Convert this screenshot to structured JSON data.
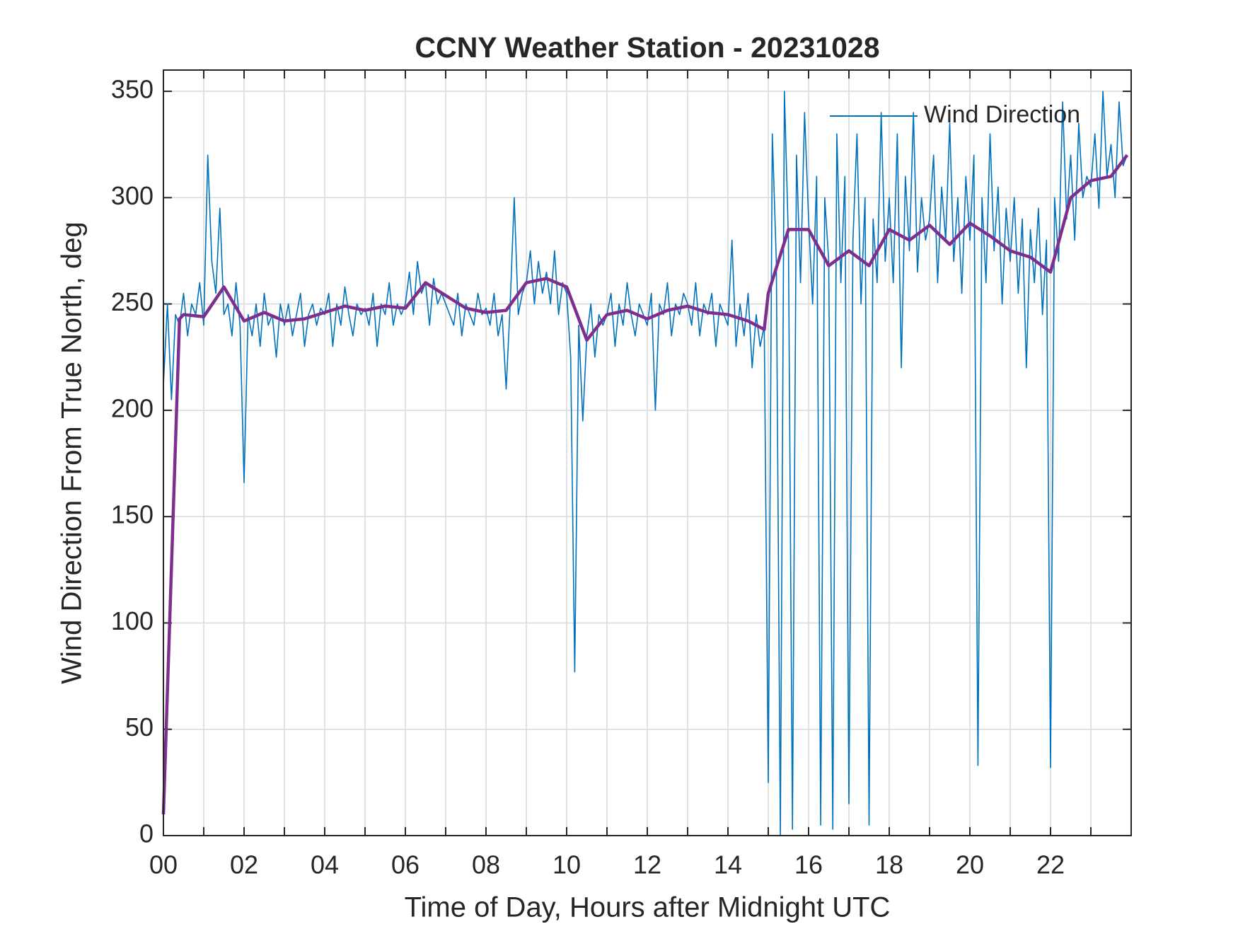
{
  "chart_data": {
    "type": "line",
    "title": "CCNY Weather Station - 20231028",
    "xlabel": "Time of Day, Hours after Midnight UTC",
    "ylabel": "Wind Direction From True North, deg",
    "xlim": [
      0,
      24
    ],
    "ylim": [
      0,
      360
    ],
    "xticks": [
      {
        "value": 0,
        "label": "00"
      },
      {
        "value": 2,
        "label": "02"
      },
      {
        "value": 4,
        "label": "04"
      },
      {
        "value": 6,
        "label": "06"
      },
      {
        "value": 8,
        "label": "08"
      },
      {
        "value": 10,
        "label": "10"
      },
      {
        "value": 12,
        "label": "12"
      },
      {
        "value": 14,
        "label": "14"
      },
      {
        "value": 16,
        "label": "16"
      },
      {
        "value": 18,
        "label": "18"
      },
      {
        "value": 20,
        "label": "20"
      },
      {
        "value": 22,
        "label": "22"
      }
    ],
    "xminor_ticks": [
      1,
      3,
      5,
      7,
      9,
      11,
      13,
      15,
      17,
      19,
      21,
      23
    ],
    "yticks": [
      0,
      50,
      100,
      150,
      200,
      250,
      300,
      350
    ],
    "grid": true,
    "legend": "top-right",
    "series": [
      {
        "name": "Wind Direction",
        "color": "#0072bd",
        "x": [
          0,
          0.1,
          0.2,
          0.3,
          0.4,
          0.5,
          0.6,
          0.7,
          0.8,
          0.9,
          1,
          1.1,
          1.2,
          1.3,
          1.4,
          1.5,
          1.6,
          1.7,
          1.8,
          1.9,
          2,
          2.1,
          2.2,
          2.3,
          2.4,
          2.5,
          2.6,
          2.7,
          2.8,
          2.9,
          3,
          3.1,
          3.2,
          3.3,
          3.4,
          3.5,
          3.6,
          3.7,
          3.8,
          3.9,
          4,
          4.1,
          4.2,
          4.3,
          4.4,
          4.5,
          4.6,
          4.7,
          4.8,
          4.9,
          5,
          5.1,
          5.2,
          5.3,
          5.4,
          5.5,
          5.6,
          5.7,
          5.8,
          5.9,
          6,
          6.1,
          6.2,
          6.3,
          6.4,
          6.5,
          6.6,
          6.7,
          6.8,
          6.9,
          7,
          7.1,
          7.2,
          7.3,
          7.4,
          7.5,
          7.6,
          7.7,
          7.8,
          7.9,
          8,
          8.1,
          8.2,
          8.3,
          8.4,
          8.5,
          8.6,
          8.7,
          8.8,
          8.9,
          9,
          9.1,
          9.2,
          9.3,
          9.4,
          9.5,
          9.6,
          9.7,
          9.8,
          9.9,
          10,
          10.1,
          10.2,
          10.3,
          10.4,
          10.5,
          10.6,
          10.7,
          10.8,
          10.9,
          11,
          11.1,
          11.2,
          11.3,
          11.4,
          11.5,
          11.6,
          11.7,
          11.8,
          11.9,
          12,
          12.1,
          12.2,
          12.3,
          12.4,
          12.5,
          12.6,
          12.7,
          12.8,
          12.9,
          13,
          13.1,
          13.2,
          13.3,
          13.4,
          13.5,
          13.6,
          13.7,
          13.8,
          13.9,
          14,
          14.1,
          14.2,
          14.3,
          14.4,
          14.5,
          14.6,
          14.7,
          14.8,
          14.9,
          15,
          15.1,
          15.2,
          15.3,
          15.4,
          15.5,
          15.6,
          15.7,
          15.8,
          15.9,
          16,
          16.1,
          16.2,
          16.3,
          16.4,
          16.5,
          16.6,
          16.7,
          16.8,
          16.9,
          17,
          17.1,
          17.2,
          17.3,
          17.4,
          17.5,
          17.6,
          17.7,
          17.8,
          17.9,
          18,
          18.1,
          18.2,
          18.3,
          18.4,
          18.5,
          18.6,
          18.7,
          18.8,
          18.9,
          19,
          19.1,
          19.2,
          19.3,
          19.4,
          19.5,
          19.6,
          19.7,
          19.8,
          19.9,
          20,
          20.1,
          20.2,
          20.3,
          20.4,
          20.5,
          20.6,
          20.7,
          20.8,
          20.9,
          21,
          21.1,
          21.2,
          21.3,
          21.4,
          21.5,
          21.6,
          21.7,
          21.8,
          21.9,
          22,
          22.1,
          22.2,
          22.3,
          22.4,
          22.5,
          22.6,
          22.7,
          22.8,
          22.9,
          23,
          23.1,
          23.2,
          23.3,
          23.4,
          23.5,
          23.6,
          23.7,
          23.8,
          23.9
        ],
        "values": [
          212,
          250,
          205,
          245,
          240,
          255,
          235,
          250,
          245,
          260,
          240,
          320,
          270,
          255,
          295,
          245,
          250,
          235,
          260,
          240,
          166,
          245,
          235,
          250,
          230,
          255,
          240,
          245,
          225,
          250,
          240,
          250,
          235,
          245,
          255,
          230,
          245,
          250,
          240,
          248,
          245,
          255,
          230,
          250,
          240,
          258,
          245,
          235,
          250,
          245,
          248,
          240,
          255,
          230,
          250,
          245,
          260,
          240,
          250,
          245,
          250,
          265,
          245,
          270,
          255,
          260,
          240,
          262,
          250,
          255,
          250,
          245,
          240,
          255,
          235,
          250,
          245,
          240,
          255,
          245,
          248,
          240,
          255,
          235,
          245,
          210,
          250,
          300,
          245,
          255,
          260,
          275,
          250,
          270,
          255,
          265,
          250,
          275,
          245,
          260,
          255,
          225,
          77,
          240,
          195,
          235,
          250,
          225,
          245,
          240,
          245,
          255,
          230,
          250,
          240,
          260,
          245,
          235,
          250,
          245,
          240,
          255,
          200,
          250,
          245,
          260,
          235,
          250,
          245,
          255,
          250,
          240,
          260,
          235,
          250,
          245,
          255,
          230,
          250,
          245,
          240,
          280,
          230,
          250,
          235,
          255,
          220,
          245,
          230,
          240,
          25,
          330,
          270,
          0,
          350,
          280,
          3,
          320,
          260,
          340,
          290,
          250,
          310,
          5,
          300,
          270,
          3,
          330,
          260,
          310,
          15,
          280,
          330,
          250,
          300,
          5,
          290,
          260,
          340,
          270,
          300,
          260,
          330,
          220,
          310,
          275,
          340,
          265,
          300,
          280,
          290,
          320,
          260,
          305,
          280,
          335,
          270,
          300,
          255,
          310,
          280,
          320,
          33,
          300,
          260,
          330,
          275,
          305,
          250,
          295,
          270,
          300,
          255,
          290,
          220,
          285,
          260,
          295,
          245,
          280,
          32,
          300,
          270,
          345,
          290,
          320,
          280,
          335,
          300,
          310,
          305,
          330,
          295,
          350,
          310,
          325,
          300,
          345,
          315,
          320
        ]
      },
      {
        "color": "#7e2f8e",
        "x": [
          0,
          0.4,
          0.5,
          1,
          1.5,
          2,
          2.5,
          3,
          3.5,
          4,
          4.5,
          5,
          5.5,
          6,
          6.5,
          7,
          7.5,
          8,
          8.5,
          9,
          9.5,
          10,
          10.5,
          11,
          11.5,
          12,
          12.5,
          13,
          13.5,
          14,
          14.5,
          14.9,
          15,
          15.5,
          16,
          16.5,
          17,
          17.5,
          18,
          18.5,
          19,
          19.5,
          20,
          20.5,
          21,
          21.5,
          22,
          22.5,
          23,
          23.5,
          23.9
        ],
        "values": [
          10,
          243,
          245,
          244,
          258,
          242,
          246,
          242,
          243,
          246,
          249,
          247,
          249,
          248,
          260,
          254,
          248,
          246,
          247,
          260,
          262,
          258,
          233,
          245,
          247,
          243,
          247,
          249,
          246,
          245,
          242,
          238,
          255,
          285,
          285,
          268,
          275,
          268,
          285,
          280,
          287,
          278,
          288,
          282,
          275,
          272,
          265,
          300,
          308,
          310,
          320
        ]
      }
    ]
  }
}
